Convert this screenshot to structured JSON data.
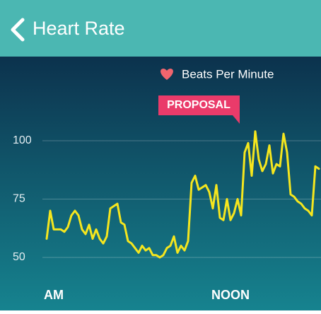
{
  "header": {
    "title": "Heart Rate"
  },
  "chart_data": {
    "type": "line",
    "annotation": "PROPOSAL",
    "categories": [
      null,
      null,
      "AM",
      null,
      null,
      null,
      null,
      null,
      null,
      null,
      null,
      null,
      null,
      null,
      null,
      null,
      null,
      null,
      null,
      null,
      null,
      null,
      null,
      null,
      null,
      null,
      null,
      null,
      null,
      null,
      null,
      null,
      null,
      null,
      null,
      null,
      null,
      null,
      null,
      null,
      null,
      null,
      null,
      null,
      null,
      null,
      null,
      null,
      null,
      null,
      null,
      null,
      "NOON",
      null,
      null,
      null,
      null,
      null,
      null,
      null,
      null,
      null,
      null,
      null,
      null,
      null,
      null,
      null,
      null,
      null,
      null,
      null,
      null,
      null,
      null,
      null,
      null,
      null
    ],
    "series": [
      {
        "name": "Beats Per Minute",
        "color": "#f5e61e",
        "values": [
          58,
          70,
          62,
          62,
          62,
          61,
          63,
          68,
          70,
          68,
          62,
          60,
          64,
          58,
          62,
          58,
          56,
          59,
          71,
          72,
          73,
          65,
          64,
          57,
          56,
          54,
          52,
          55,
          53,
          54,
          51,
          51,
          50,
          51,
          54,
          55,
          59,
          52,
          55,
          53,
          57,
          82,
          85,
          79,
          80,
          81,
          78,
          71,
          81,
          67,
          66,
          75,
          66,
          69,
          75,
          68,
          95,
          99,
          85,
          104,
          92,
          87,
          90,
          98,
          86,
          90,
          89,
          103,
          95,
          77,
          76,
          74,
          73,
          71,
          70,
          68,
          89,
          88
        ]
      }
    ],
    "ylim": [
      25,
      125
    ],
    "yticks": [
      50,
      75,
      100
    ],
    "grid": true
  }
}
